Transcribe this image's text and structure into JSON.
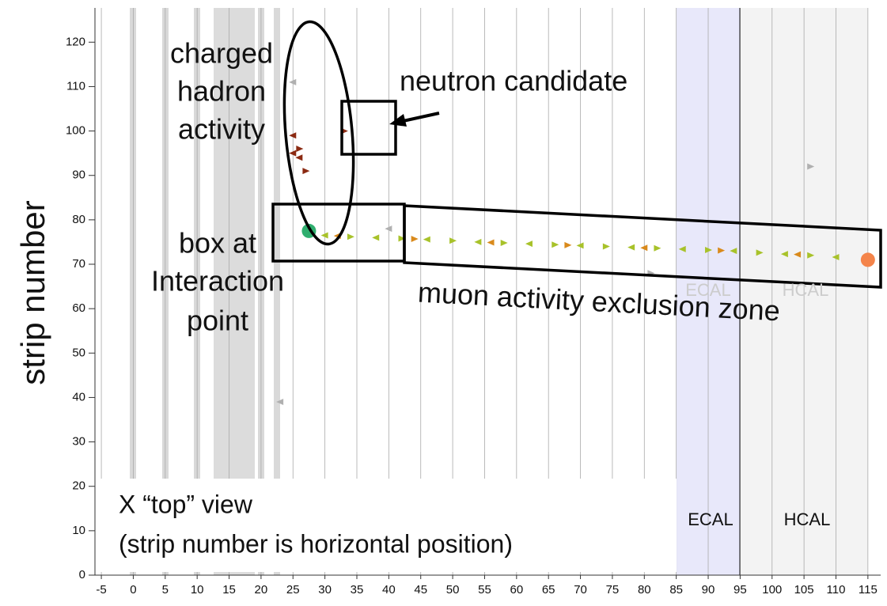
{
  "chart_data": {
    "type": "scatter",
    "y_label": "strip number",
    "xlim": [
      -6,
      117
    ],
    "ylim": [
      0,
      127
    ],
    "xticks": [
      -5,
      0,
      5,
      10,
      15,
      20,
      25,
      30,
      35,
      40,
      45,
      50,
      55,
      60,
      65,
      70,
      75,
      80,
      85,
      90,
      95,
      100,
      105,
      110,
      115
    ],
    "yticks": [
      0,
      10,
      20,
      30,
      40,
      50,
      60,
      70,
      80,
      90,
      100,
      110,
      120
    ],
    "grid": true,
    "annotations": [
      "charged",
      "hadron",
      "activity",
      "neutron candidate",
      "box at",
      "Interaction",
      "point",
      "muon activity exclusion zone",
      "X “top” view",
      "(strip number is horizontal position)",
      "ECAL",
      "HCAL",
      "ECAL",
      "HCAL"
    ],
    "series": [
      {
        "color": "#a8c22a",
        "x": [
          30,
          34,
          38,
          42,
          46,
          50,
          54,
          58,
          62,
          66,
          70,
          74,
          78,
          82,
          86,
          90,
          94,
          98,
          102,
          106,
          110
        ],
        "y": [
          76.5,
          76.2,
          76.0,
          75.8,
          75.6,
          75.3,
          75.0,
          74.8,
          74.6,
          74.4,
          74.2,
          74.0,
          73.8,
          73.6,
          73.4,
          73.2,
          73.0,
          72.6,
          72.3,
          72.0,
          71.6
        ]
      },
      {
        "color": "#d98a1c",
        "x": [
          32,
          44,
          56,
          68,
          80,
          92,
          104
        ],
        "y": [
          76.4,
          75.7,
          74.9,
          74.3,
          73.7,
          73.1,
          72.2
        ]
      },
      {
        "color": "#8b2a12",
        "x": [
          25,
          26,
          26,
          27,
          25,
          33
        ],
        "y": [
          99,
          96,
          94,
          91,
          95,
          100
        ]
      },
      {
        "color": "#b0b0b0",
        "x": [
          25,
          106,
          23,
          81,
          40
        ],
        "y": [
          111,
          92,
          39,
          68,
          78
        ]
      },
      {
        "color": "#2fae6e",
        "x": [
          27.5
        ],
        "y": [
          77.5
        ]
      },
      {
        "color": "#f4844a",
        "x": [
          115
        ],
        "y": [
          71
        ]
      }
    ]
  }
}
